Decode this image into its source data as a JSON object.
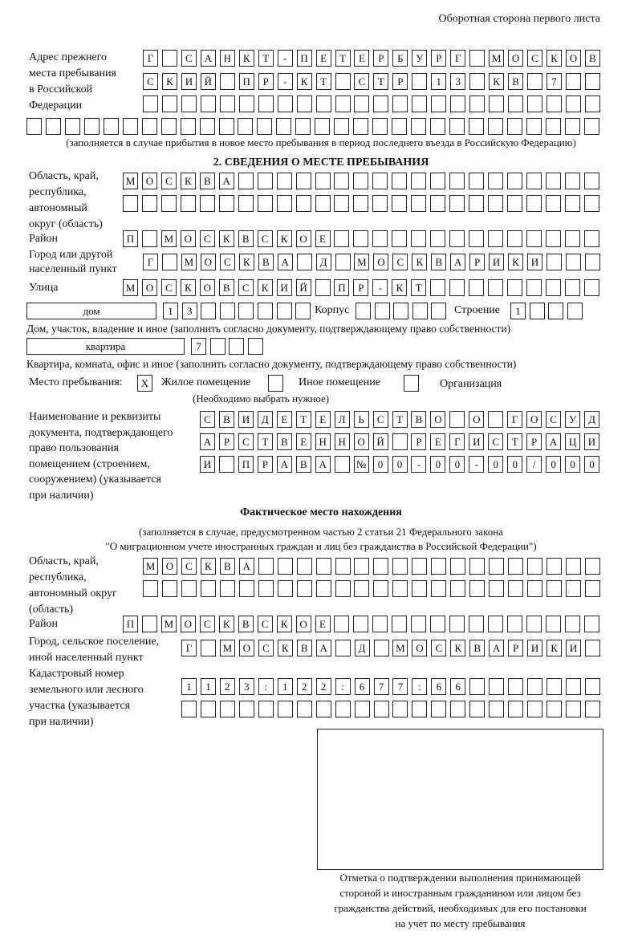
{
  "header": "Оборотная сторона первого листа",
  "prev_address": {
    "label": "Адрес прежнего\nместа пребывания\nв Российской\nФедерации",
    "rows": [
      [
        "Г",
        "",
        "С",
        "А",
        "Н",
        "К",
        "Т",
        "-",
        "П",
        "Е",
        "Т",
        "Е",
        "Р",
        "Б",
        "У",
        "Р",
        "Г",
        "",
        "М",
        "О",
        "С",
        "К",
        "О",
        "В"
      ],
      [
        "С",
        "К",
        "И",
        "Й",
        "",
        "П",
        "Р",
        "-",
        "К",
        "Т",
        "",
        "С",
        "Т",
        "Р",
        "",
        "1",
        "3",
        "",
        "К",
        "В",
        "",
        "7",
        "",
        ""
      ],
      [
        "",
        "",
        "",
        "",
        "",
        "",
        "",
        "",
        "",
        "",
        "",
        "",
        "",
        "",
        "",
        "",
        "",
        "",
        "",
        "",
        "",
        "",
        "",
        ""
      ],
      [
        "",
        "",
        "",
        "",
        "",
        "",
        "",
        "",
        "",
        "",
        "",
        "",
        "",
        "",
        "",
        "",
        "",
        "",
        "",
        "",
        "",
        "",
        "",
        "",
        "",
        "",
        "",
        "",
        "",
        ""
      ]
    ],
    "note": "(заполняется в случае прибытия в новое место пребывания в период последнего въезда в Российскую Федерацию)"
  },
  "section2": {
    "title": "2. СВЕДЕНИЯ О МЕСТЕ ПРЕБЫВАНИЯ",
    "region_label": "Область, край,\nреспублика,\nавтономный\nокруг (область)",
    "region_rows": [
      [
        "М",
        "О",
        "С",
        "К",
        "В",
        "А",
        "",
        "",
        "",
        "",
        "",
        "",
        "",
        "",
        "",
        "",
        "",
        "",
        "",
        "",
        "",
        "",
        "",
        "",
        ""
      ],
      [
        "",
        "",
        "",
        "",
        "",
        "",
        "",
        "",
        "",
        "",
        "",
        "",
        "",
        "",
        "",
        "",
        "",
        "",
        "",
        "",
        "",
        "",
        "",
        "",
        ""
      ]
    ],
    "district_label": "Район",
    "district_row": [
      "П",
      "",
      "М",
      "О",
      "С",
      "К",
      "В",
      "С",
      "К",
      "О",
      "Е",
      "",
      "",
      "",
      "",
      "",
      "",
      "",
      "",
      "",
      "",
      "",
      "",
      "",
      ""
    ],
    "city_label": "Город или другой\nнаселенный пункт",
    "city_row": [
      "Г",
      "",
      "М",
      "О",
      "С",
      "К",
      "В",
      "А",
      "",
      "Д",
      "",
      "М",
      "О",
      "С",
      "К",
      "В",
      "А",
      "Р",
      "И",
      "К",
      "И",
      "",
      "",
      ""
    ],
    "street_label": "Улица",
    "street_row": [
      "М",
      "О",
      "С",
      "К",
      "О",
      "В",
      "С",
      "К",
      "И",
      "Й",
      "",
      "П",
      "Р",
      "-",
      "К",
      "Т",
      "",
      "",
      "",
      "",
      "",
      "",
      "",
      "",
      ""
    ],
    "house_type": "дом",
    "house_row": [
      "1",
      "3",
      "",
      "",
      "",
      "",
      "",
      ""
    ],
    "korpus_label": "Корпус",
    "korpus_row": [
      "",
      "",
      "",
      "",
      ""
    ],
    "building_label": "Строение",
    "building_row": [
      "1",
      "",
      "",
      ""
    ],
    "house_note": "Дом, участок, владение и иное (заполнить согласно документу, подтверждающему право собственности)",
    "apt_type": "квартира",
    "apt_row": [
      "7",
      "",
      "",
      ""
    ],
    "apt_note": "Квартира, комната, офис и иное (заполнить согласно документу, подтверждающему право собственности)",
    "stay_label": "Место пребывания:",
    "stay_options": [
      {
        "label": "Жилое помещение",
        "mark": "X"
      },
      {
        "label": "Иное помещение",
        "mark": ""
      },
      {
        "label": "Организация",
        "mark": ""
      }
    ],
    "stay_note": "(Необходимо выбрать нужное)",
    "doc_label": "Наименование и реквизиты\nдокумента, подтверждающего\nправо пользования\nпомещением (строением,\nсооружением) (указывается\nпри наличии)",
    "doc_rows": [
      [
        "С",
        "В",
        "И",
        "Д",
        "Е",
        "Т",
        "Е",
        "Л",
        "Ь",
        "С",
        "Т",
        "В",
        "О",
        "",
        "О",
        "",
        "Г",
        "О",
        "С",
        "У",
        "Д"
      ],
      [
        "А",
        "Р",
        "С",
        "Т",
        "В",
        "Е",
        "Н",
        "Н",
        "О",
        "Й",
        "",
        "Р",
        "Е",
        "Г",
        "И",
        "С",
        "Т",
        "Р",
        "А",
        "Ц",
        "И"
      ],
      [
        "И",
        "",
        "П",
        "Р",
        "А",
        "В",
        "А",
        "",
        "№",
        "0",
        "0",
        "-",
        "0",
        "0",
        "-",
        "0",
        "0",
        "/",
        "0",
        "0",
        "0"
      ]
    ]
  },
  "actual": {
    "title": "Фактическое место нахождения",
    "note1": "(заполняется в случае, предусмотренном частью 2 статьи 21 Федерального закона",
    "note2": "\"О миграционном учете иностранных граждан и лиц без гражданства в Российской Федерации\")",
    "region_label": "Область, край,\nреспублика,\nавтономный округ\n(область)",
    "region_rows": [
      [
        "М",
        "О",
        "С",
        "К",
        "В",
        "А",
        "",
        "",
        "",
        "",
        "",
        "",
        "",
        "",
        "",
        "",
        "",
        "",
        "",
        "",
        "",
        "",
        "",
        ""
      ],
      [
        "",
        "",
        "",
        "",
        "",
        "",
        "",
        "",
        "",
        "",
        "",
        "",
        "",
        "",
        "",
        "",
        "",
        "",
        "",
        "",
        "",
        "",
        "",
        ""
      ]
    ],
    "district_label": "Район",
    "district_row": [
      "П",
      "",
      "М",
      "О",
      "С",
      "К",
      "В",
      "С",
      "К",
      "О",
      "Е",
      "",
      "",
      "",
      "",
      "",
      "",
      "",
      "",
      "",
      "",
      "",
      "",
      "",
      ""
    ],
    "city_label": "Город, сельское поселение,\nиной населенный пункт",
    "city_row": [
      "Г",
      "",
      "М",
      "О",
      "С",
      "К",
      "В",
      "А",
      "",
      "Д",
      "",
      "М",
      "О",
      "С",
      "К",
      "В",
      "А",
      "Р",
      "И",
      "К",
      "И",
      ""
    ],
    "cadastre_label": "Кадастровый номер\nземельного или лесного\nучастка (указывается\nпри наличии)",
    "cadastre_rows": [
      [
        "1",
        "1",
        "2",
        "3",
        ":",
        "1",
        "2",
        "2",
        ":",
        "6",
        "7",
        "7",
        ":",
        "6",
        "6",
        "",
        "",
        "",
        "",
        "",
        "",
        ""
      ],
      [
        "",
        "",
        "",
        "",
        "",
        "",
        "",
        "",
        "",
        "",
        "",
        "",
        "",
        "",
        "",
        "",
        "",
        "",
        "",
        "",
        "",
        ""
      ]
    ]
  },
  "confirmation_note": "Отметка о подтверждении выполнения принимающей\nстороной и иностранным гражданином или лицом без\nгражданства действий, необходимых для его постановки\nна учет по месту пребывания"
}
